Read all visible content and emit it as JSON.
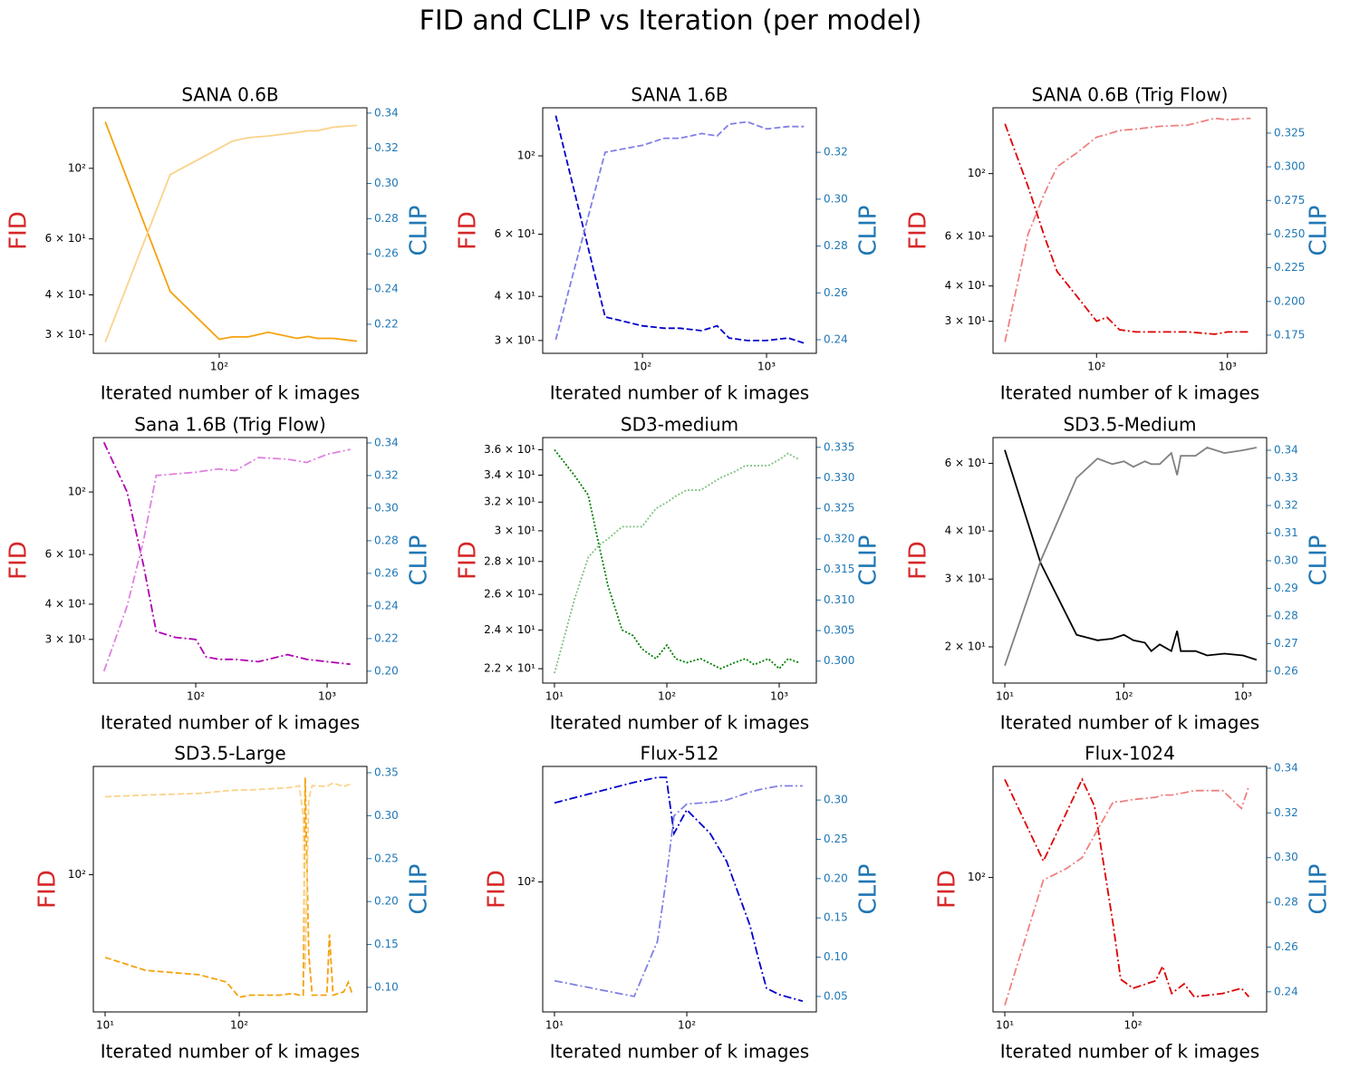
{
  "title": "FID and CLIP vs Iteration (per model)",
  "chart_data": [
    {
      "type": "line",
      "title": "SANA 0.6B",
      "x_label": "Iterated number of k images",
      "y_label": "FID",
      "y2_label": "CLIP",
      "x_scale": "log",
      "y_scale": "log",
      "xlim": [
        16.9,
        805
      ],
      "xticks": [
        {
          "value": 100,
          "label": "10²"
        }
      ],
      "ylim": [
        26.2,
        155
      ],
      "yticks": [
        {
          "value": 30,
          "label": "3 × 10¹"
        },
        {
          "value": 40,
          "label": "4 × 10¹"
        },
        {
          "value": 60,
          "label": "6 × 10¹"
        },
        {
          "value": 100,
          "label": "10²"
        }
      ],
      "y2lim": [
        0.2035,
        0.343
      ],
      "y2ticks": [
        0.22,
        0.24,
        0.26,
        0.28,
        {
          "value": 0.3,
          "label": "0.30"
        },
        0.32,
        0.34
      ],
      "x": [
        20,
        50,
        100,
        120,
        150,
        200,
        300,
        350,
        400,
        500,
        700
      ],
      "series": [
        {
          "color": "#f5a20f",
          "line_style": "solid",
          "values": [
            140,
            41,
            29,
            29.5,
            29.5,
            30.5,
            29.2,
            29.6,
            29.2,
            29.2,
            28.6
          ]
        },
        {
          "color": "#fad38a",
          "line_style": "solid",
          "axis": "y2",
          "values": [
            0.21,
            0.305,
            0.32,
            0.324,
            0.326,
            0.327,
            0.329,
            0.33,
            0.33,
            0.332,
            0.333
          ]
        }
      ]
    },
    {
      "type": "line",
      "title": "SANA 1.6B",
      "x_label": "Iterated number of k images",
      "y_label": "FID",
      "y2_label": "CLIP",
      "x_scale": "log",
      "y_scale": "log",
      "xlim": [
        15.7,
        2520
      ],
      "xticks": [
        {
          "value": 100,
          "label": "10²"
        },
        {
          "value": 1000,
          "label": "10³"
        }
      ],
      "ylim": [
        27.6,
        136.8
      ],
      "yticks": [
        {
          "value": 30,
          "label": "3 × 10¹"
        },
        {
          "value": 40,
          "label": "4 × 10¹"
        },
        {
          "value": 60,
          "label": "6 × 10¹"
        },
        {
          "value": 100,
          "label": "10²"
        }
      ],
      "y2lim": [
        0.2342,
        0.339
      ],
      "y2ticks": [
        0.24,
        0.26,
        0.28,
        {
          "value": 0.3,
          "label": "0.30"
        },
        0.32
      ],
      "x": [
        20,
        50,
        100,
        150,
        200,
        300,
        400,
        500,
        700,
        1000,
        1500,
        2000
      ],
      "series": [
        {
          "color": "#0000cc",
          "line_style": "dashed",
          "values": [
            130,
            35,
            33,
            32.5,
            32.5,
            32,
            33,
            30.5,
            30,
            30,
            30.5,
            29.5
          ]
        },
        {
          "color": "#8080e6",
          "line_style": "dashed",
          "axis": "y2",
          "values": [
            0.24,
            0.32,
            0.323,
            0.326,
            0.326,
            0.328,
            0.327,
            0.332,
            0.333,
            0.33,
            0.331,
            0.331
          ]
        }
      ]
    },
    {
      "type": "line",
      "title": "SANA 0.6B (Trig Flow)",
      "x_label": "Iterated number of k images",
      "y_label": "FID",
      "y2_label": "CLIP",
      "x_scale": "log",
      "y_scale": "log",
      "xlim": [
        16.2,
        1990
      ],
      "xticks": [
        {
          "value": 100,
          "label": "10²"
        },
        {
          "value": 1000,
          "label": "10³"
        }
      ],
      "ylim": [
        23.1,
        171
      ],
      "yticks": [
        {
          "value": 30,
          "label": "3 × 10¹"
        },
        {
          "value": 40,
          "label": "4 × 10¹"
        },
        {
          "value": 60,
          "label": "6 × 10¹"
        },
        {
          "value": 100,
          "label": "10²"
        }
      ],
      "y2lim": [
        0.1615,
        0.3438
      ],
      "y2ticks": [
        0.175,
        {
          "value": 0.2,
          "label": "0.200"
        },
        0.225,
        {
          "value": 0.25,
          "label": "0.250"
        },
        0.275,
        {
          "value": 0.3,
          "label": "0.300"
        },
        0.325
      ],
      "x": [
        20,
        30,
        40,
        50,
        70,
        100,
        120,
        150,
        200,
        300,
        500,
        800,
        1000,
        1500
      ],
      "series": [
        {
          "color": "#dd0000",
          "line_style": "dashdot",
          "values": [
            150,
            90,
            60,
            45,
            37,
            30,
            31,
            28,
            27.5,
            27.5,
            27.5,
            27,
            27.5,
            27.5
          ]
        },
        {
          "color": "#f08080",
          "line_style": "dashdot",
          "axis": "y2",
          "values": [
            0.17,
            0.25,
            0.28,
            0.3,
            0.31,
            0.322,
            0.324,
            0.327,
            0.328,
            0.33,
            0.331,
            0.336,
            0.335,
            0.336
          ]
        }
      ]
    },
    {
      "type": "line",
      "title": "Sana 1.6B (Trig Flow)",
      "x_label": "Iterated number of k images",
      "y_label": "FID",
      "y2_label": "CLIP",
      "x_scale": "log",
      "y_scale": "log",
      "xlim": [
        16.6,
        2010
      ],
      "xticks": [
        {
          "value": 100,
          "label": "10²"
        },
        {
          "value": 1000,
          "label": "10³"
        }
      ],
      "ylim": [
        21.0,
        156
      ],
      "yticks": [
        {
          "value": 30,
          "label": "3 × 10¹"
        },
        {
          "value": 40,
          "label": "4 × 10¹"
        },
        {
          "value": 60,
          "label": "6 × 10¹"
        },
        {
          "value": 100,
          "label": "10²"
        }
      ],
      "y2lim": [
        0.1927,
        0.3433
      ],
      "y2ticks": [
        {
          "value": 0.2,
          "label": "0.20"
        },
        0.22,
        0.24,
        0.26,
        0.28,
        {
          "value": 0.3,
          "label": "0.30"
        },
        0.32,
        0.34
      ],
      "x": [
        20,
        30,
        40,
        50,
        70,
        100,
        120,
        150,
        200,
        300,
        500,
        700,
        1000,
        1500
      ],
      "series": [
        {
          "color": "#b000b0",
          "line_style": "dashdot",
          "values": [
            150,
            100,
            55,
            32,
            30.5,
            30,
            26,
            25.5,
            25.5,
            25,
            26.5,
            25.5,
            25,
            24.5
          ]
        },
        {
          "color": "#e080e0",
          "line_style": "dashdot",
          "axis": "y2",
          "values": [
            0.2,
            0.24,
            0.28,
            0.32,
            0.321,
            0.322,
            0.323,
            0.324,
            0.323,
            0.331,
            0.33,
            0.328,
            0.333,
            0.336
          ]
        }
      ]
    },
    {
      "type": "line",
      "title": "SD3-medium",
      "x_label": "Iterated number of k images",
      "y_label": "FID",
      "y2_label": "CLIP",
      "x_scale": "log",
      "y_scale": "log",
      "xlim": [
        7.86,
        2140
      ],
      "xticks": [
        {
          "value": 10,
          "label": "10¹"
        },
        {
          "value": 100,
          "label": "10²"
        },
        {
          "value": 1000,
          "label": "10³"
        }
      ],
      "ylim": [
        21.3,
        37.0
      ],
      "yticks": [
        {
          "value": 22,
          "label": "2.2 × 10¹"
        },
        {
          "value": 24,
          "label": "2.4 × 10¹"
        },
        {
          "value": 26,
          "label": "2.6 × 10¹"
        },
        {
          "value": 28,
          "label": "2.8 × 10¹"
        },
        {
          "value": 30,
          "label": "3 × 10¹"
        },
        {
          "value": 32,
          "label": "3.2 × 10¹"
        },
        {
          "value": 34,
          "label": "3.4 × 10¹"
        },
        {
          "value": 36,
          "label": "3.6 × 10¹"
        }
      ],
      "y2lim": [
        0.2964,
        0.3366
      ],
      "y2ticks": [
        {
          "value": 0.3,
          "label": "0.300"
        },
        0.305,
        {
          "value": 0.31,
          "label": "0.310"
        },
        0.315,
        {
          "value": 0.32,
          "label": "0.320"
        },
        0.325,
        {
          "value": 0.33,
          "label": "0.330"
        },
        0.335
      ],
      "x": [
        10,
        15,
        20,
        25,
        30,
        40,
        50,
        60,
        80,
        100,
        120,
        150,
        200,
        300,
        400,
        500,
        600,
        800,
        1000,
        1200,
        1500
      ],
      "series": [
        {
          "color": "#008000",
          "line_style": "dotted",
          "values": [
            36,
            34,
            32.5,
            29,
            26.5,
            24,
            23.7,
            23,
            22.5,
            23.2,
            22.5,
            22.3,
            22.5,
            22,
            22.3,
            22.5,
            22.2,
            22.5,
            22,
            22.5,
            22.3
          ]
        },
        {
          "color": "#80c080",
          "line_style": "dotted",
          "axis": "y2",
          "values": [
            0.298,
            0.31,
            0.317,
            0.319,
            0.32,
            0.322,
            0.322,
            0.322,
            0.325,
            0.326,
            0.327,
            0.328,
            0.328,
            0.33,
            0.331,
            0.332,
            0.332,
            0.332,
            0.333,
            0.334,
            0.333
          ]
        }
      ]
    },
    {
      "type": "line",
      "title": "SD3.5-Medium",
      "x_label": "Iterated number of k images",
      "y_label": "FID",
      "y2_label": "CLIP",
      "x_scale": "log",
      "y_scale": "log",
      "xlim": [
        7.96,
        1580
      ],
      "xticks": [
        {
          "value": 10,
          "label": "10¹"
        },
        {
          "value": 100,
          "label": "10²"
        },
        {
          "value": 1000,
          "label": "10³"
        }
      ],
      "ylim": [
        16.1,
        70.0
      ],
      "yticks": [
        {
          "value": 20,
          "label": "2 × 10¹"
        },
        {
          "value": 30,
          "label": "3 × 10¹"
        },
        {
          "value": 40,
          "label": "4 × 10¹"
        },
        {
          "value": 60,
          "label": "6 × 10¹"
        }
      ],
      "y2lim": [
        0.2557,
        0.3446
      ],
      "y2ticks": [
        0.26,
        0.27,
        0.28,
        0.29,
        {
          "value": 0.3,
          "label": "0.30"
        },
        0.31,
        0.32,
        0.33,
        0.34
      ],
      "x": [
        10,
        20,
        40,
        60,
        80,
        100,
        120,
        150,
        170,
        200,
        250,
        280,
        300,
        400,
        500,
        700,
        1000,
        1300
      ],
      "series": [
        {
          "color": "#000000",
          "line_style": "solid",
          "values": [
            65,
            33,
            21.5,
            20.8,
            21,
            21.5,
            20.8,
            20.5,
            19.5,
            20.3,
            19.5,
            22,
            19.5,
            19.5,
            19,
            19.2,
            19,
            18.5
          ]
        },
        {
          "color": "#808080",
          "line_style": "solid",
          "axis": "y2",
          "values": [
            0.262,
            0.3,
            0.33,
            0.337,
            0.335,
            0.336,
            0.334,
            0.336,
            0.335,
            0.335,
            0.339,
            0.331,
            0.338,
            0.338,
            0.341,
            0.339,
            0.34,
            0.341
          ]
        }
      ]
    },
    {
      "type": "line",
      "title": "SD3.5-Large",
      "x_label": "Iterated number of k images",
      "y_label": "FID",
      "y2_label": "CLIP",
      "x_scale": "log",
      "y_scale": "log",
      "xlim": [
        8.17,
        895
      ],
      "xticks": [
        {
          "value": 10,
          "label": "10¹"
        },
        {
          "value": 100,
          "label": "10²"
        }
      ],
      "ylim": [
        41.3,
        201
      ],
      "yticks": [
        {
          "value": 100,
          "label": "10²"
        }
      ],
      "y2lim": [
        0.0714,
        0.3574
      ],
      "y2ticks": [
        {
          "value": 0.1,
          "label": "0.10"
        },
        0.15,
        {
          "value": 0.2,
          "label": "0.20"
        },
        0.25,
        {
          "value": 0.3,
          "label": "0.30"
        },
        0.35
      ],
      "x": [
        10,
        20,
        50,
        80,
        100,
        120,
        200,
        250,
        280,
        300,
        310,
        330,
        350,
        450,
        470,
        500,
        600,
        650,
        700
      ],
      "series": [
        {
          "color": "#f5a20f",
          "line_style": "dashed",
          "values": [
            58.7,
            54,
            52.5,
            50.1,
            45.4,
            46,
            46,
            46.5,
            46,
            46,
            187,
            60,
            46,
            46,
            68,
            46,
            47,
            50,
            46
          ]
        },
        {
          "color": "#fad38a",
          "line_style": "dashed",
          "axis": "y2",
          "values": [
            0.322,
            0.324,
            0.326,
            0.329,
            0.33,
            0.33,
            0.332,
            0.333,
            0.335,
            0.3,
            0.12,
            0.32,
            0.335,
            0.334,
            0.336,
            0.338,
            0.334,
            0.336,
            0.338
          ]
        }
      ]
    },
    {
      "type": "line",
      "title": "Flux-512",
      "x_label": "Iterated number of k images",
      "y_label": "FID",
      "y2_label": "CLIP",
      "x_scale": "log",
      "y_scale": "log",
      "xlim": [
        8.15,
        952
      ],
      "xticks": [
        {
          "value": 10,
          "label": "10¹"
        },
        {
          "value": 100,
          "label": "10²"
        }
      ],
      "ylim": [
        43.9,
        208
      ],
      "yticks": [
        {
          "value": 100,
          "label": "10²"
        }
      ],
      "y2lim": [
        0.0303,
        0.3428
      ],
      "y2ticks": [
        0.05,
        {
          "value": 0.1,
          "label": "0.10"
        },
        0.15,
        {
          "value": 0.2,
          "label": "0.20"
        },
        0.25,
        {
          "value": 0.3,
          "label": "0.30"
        }
      ],
      "x": [
        10,
        40,
        60,
        70,
        80,
        100,
        150,
        200,
        300,
        350,
        400,
        500,
        750
      ],
      "series": [
        {
          "color": "#0000cc",
          "line_style": "dashdot",
          "values": [
            165,
            188,
            194,
            194,
            136,
            158,
            136,
            114,
            76,
            61,
            51,
            49,
            47
          ]
        },
        {
          "color": "#8080e6",
          "line_style": "dashdot",
          "axis": "y2",
          "values": [
            0.07,
            0.05,
            0.12,
            0.2,
            0.28,
            0.295,
            0.297,
            0.3,
            0.31,
            0.313,
            0.315,
            0.318,
            0.318
          ]
        }
      ]
    },
    {
      "type": "line",
      "title": "Flux-1024",
      "x_label": "Iterated number of k images",
      "y_label": "FID",
      "y2_label": "CLIP",
      "x_scale": "log",
      "y_scale": "log",
      "xlim": [
        8.09,
        1100
      ],
      "xticks": [
        {
          "value": 10,
          "label": "10¹"
        },
        {
          "value": 100,
          "label": "10²"
        }
      ],
      "ylim": [
        42.7,
        202
      ],
      "yticks": [
        {
          "value": 100,
          "label": "10²"
        }
      ],
      "y2lim": [
        0.231,
        0.3408
      ],
      "y2ticks": [
        0.24,
        0.26,
        0.28,
        {
          "value": 0.3,
          "label": "0.30"
        },
        0.32,
        0.34
      ],
      "x": [
        10,
        20,
        30,
        40,
        50,
        70,
        80,
        100,
        150,
        170,
        200,
        250,
        300,
        500,
        700,
        800
      ],
      "series": [
        {
          "color": "#dd0000",
          "line_style": "dashdot",
          "values": [
            186,
            111,
            150,
            186,
            157,
            74,
            52.5,
            49.6,
            52,
            57,
            48,
            51,
            47,
            48,
            49.6,
            47
          ]
        },
        {
          "color": "#f08080",
          "line_style": "dashdot",
          "axis": "y2",
          "values": [
            0.234,
            0.29,
            0.295,
            0.3,
            0.31,
            0.325,
            0.325,
            0.326,
            0.327,
            0.328,
            0.328,
            0.329,
            0.33,
            0.33,
            0.322,
            0.332
          ]
        }
      ]
    }
  ]
}
